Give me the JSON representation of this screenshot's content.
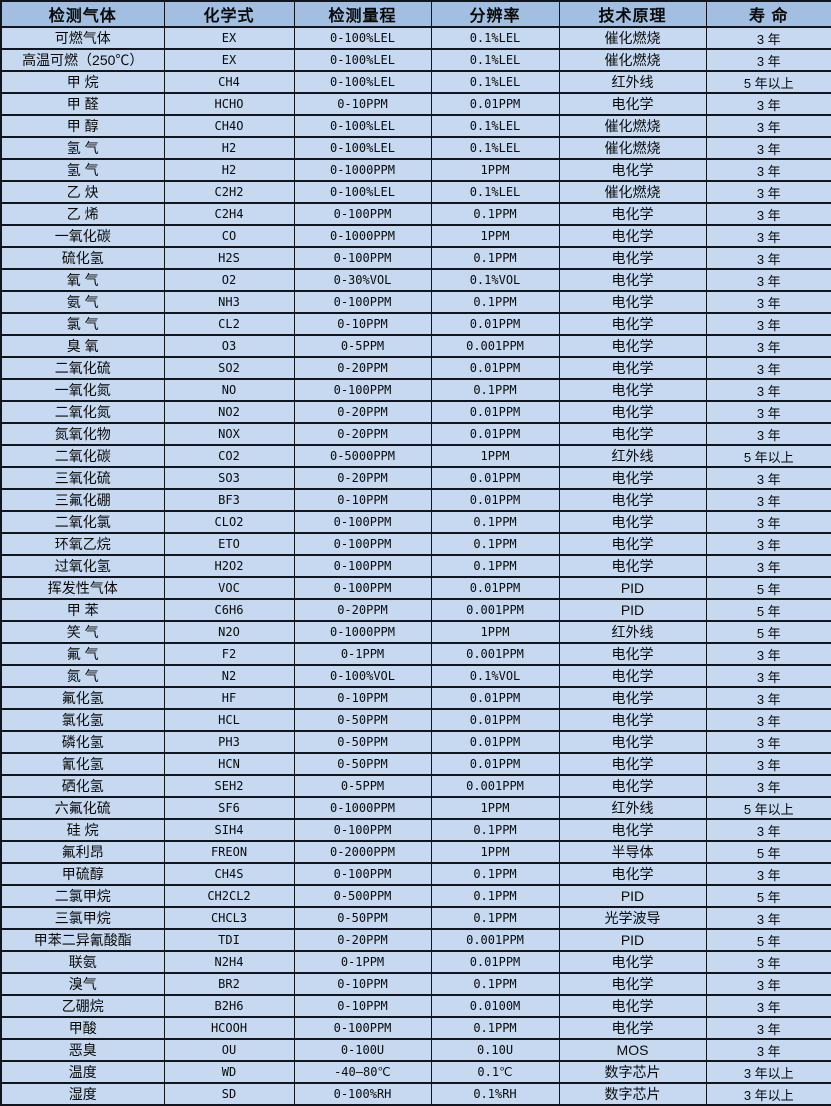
{
  "colors": {
    "header_bg": "#a2bfe1",
    "row_bg": "#c6d9f1",
    "border": "#13151c",
    "text": "#0a0a0a"
  },
  "table": {
    "headers": [
      "检测气体",
      "化学式",
      "检测量程",
      "分辨率",
      "技术原理",
      "寿 命"
    ],
    "column_names": [
      "gas-name",
      "chemical-formula",
      "detection-range",
      "resolution",
      "principle",
      "lifespan"
    ],
    "rows": [
      [
        "可燃气体",
        "EX",
        "0-100%LEL",
        "0.1%LEL",
        "催化燃烧",
        "3 年"
      ],
      [
        "高温可燃（250℃）",
        "EX",
        "0-100%LEL",
        "0.1%LEL",
        "催化燃烧",
        "3 年"
      ],
      [
        "甲 烷",
        "CH4",
        "0-100%LEL",
        "0.1%LEL",
        "红外线",
        "5 年以上"
      ],
      [
        "甲 醛",
        "HCHO",
        "0-10PPM",
        "0.01PPM",
        "电化学",
        "3 年"
      ],
      [
        "甲 醇",
        "CH4O",
        "0-100%LEL",
        "0.1%LEL",
        "催化燃烧",
        "3 年"
      ],
      [
        "氢 气",
        "H2",
        "0-100%LEL",
        "0.1%LEL",
        "催化燃烧",
        "3 年"
      ],
      [
        "氢 气",
        "H2",
        "0-1000PPM",
        "1PPM",
        "电化学",
        "3 年"
      ],
      [
        "乙 炔",
        "C2H2",
        "0-100%LEL",
        "0.1%LEL",
        "催化燃烧",
        "3 年"
      ],
      [
        "乙 烯",
        "C2H4",
        "0-100PPM",
        "0.1PPM",
        "电化学",
        "3 年"
      ],
      [
        "一氧化碳",
        "CO",
        "0-1000PPM",
        "1PPM",
        "电化学",
        "3 年"
      ],
      [
        "硫化氢",
        "H2S",
        "0-100PPM",
        "0.1PPM",
        "电化学",
        "3 年"
      ],
      [
        "氧 气",
        "O2",
        "0-30%VOL",
        "0.1%VOL",
        "电化学",
        "3 年"
      ],
      [
        "氨 气",
        "NH3",
        "0-100PPM",
        "0.1PPM",
        "电化学",
        "3 年"
      ],
      [
        "氯 气",
        "CL2",
        "0-10PPM",
        "0.01PPM",
        "电化学",
        "3 年"
      ],
      [
        "臭 氧",
        "O3",
        "0-5PPM",
        "0.001PPM",
        "电化学",
        "3 年"
      ],
      [
        "二氧化硫",
        "SO2",
        "0-20PPM",
        "0.01PPM",
        "电化学",
        "3 年"
      ],
      [
        "一氧化氮",
        "NO",
        "0-100PPM",
        "0.1PPM",
        "电化学",
        "3 年"
      ],
      [
        "二氧化氮",
        "NO2",
        "0-20PPM",
        "0.01PPM",
        "电化学",
        "3 年"
      ],
      [
        "氮氧化物",
        "NOX",
        "0-20PPM",
        "0.01PPM",
        "电化学",
        "3 年"
      ],
      [
        "二氧化碳",
        "CO2",
        "0-5000PPM",
        "1PPM",
        "红外线",
        "5 年以上"
      ],
      [
        "三氧化硫",
        "SO3",
        "0-20PPM",
        "0.01PPM",
        "电化学",
        "3 年"
      ],
      [
        "三氟化硼",
        "BF3",
        "0-10PPM",
        "0.01PPM",
        "电化学",
        "3 年"
      ],
      [
        "二氧化氯",
        "CLO2",
        "0-100PPM",
        "0.1PPM",
        "电化学",
        "3 年"
      ],
      [
        "环氧乙烷",
        "ETO",
        "0-100PPM",
        "0.1PPM",
        "电化学",
        "3 年"
      ],
      [
        "过氧化氢",
        "H2O2",
        "0-100PPM",
        "0.1PPM",
        "电化学",
        "3 年"
      ],
      [
        "挥发性气体",
        "VOC",
        "0-100PPM",
        "0.01PPM",
        "PID",
        "5 年"
      ],
      [
        "甲 苯",
        "C6H6",
        "0-20PPM",
        "0.001PPM",
        "PID",
        "5 年"
      ],
      [
        "笑 气",
        "N2O",
        "0-1000PPM",
        "1PPM",
        "红外线",
        "5 年"
      ],
      [
        "氟 气",
        "F2",
        "0-1PPM",
        "0.001PPM",
        "电化学",
        "3 年"
      ],
      [
        "氮 气",
        "N2",
        "0-100%VOL",
        "0.1%VOL",
        "电化学",
        "3 年"
      ],
      [
        "氟化氢",
        "HF",
        "0-10PPM",
        "0.01PPM",
        "电化学",
        "3 年"
      ],
      [
        "氯化氢",
        "HCL",
        "0-50PPM",
        "0.01PPM",
        "电化学",
        "3 年"
      ],
      [
        "磷化氢",
        "PH3",
        "0-50PPM",
        "0.01PPM",
        "电化学",
        "3 年"
      ],
      [
        "氰化氢",
        "HCN",
        "0-50PPM",
        "0.01PPM",
        "电化学",
        "3 年"
      ],
      [
        "硒化氢",
        "SEH2",
        "0-5PPM",
        "0.001PPM",
        "电化学",
        "3 年"
      ],
      [
        "六氟化硫",
        "SF6",
        "0-1000PPM",
        "1PPM",
        "红外线",
        "5 年以上"
      ],
      [
        "硅 烷",
        "SIH4",
        "0-100PPM",
        "0.1PPM",
        "电化学",
        "3 年"
      ],
      [
        "氟利昂",
        "FREON",
        "0-2000PPM",
        "1PPM",
        "半导体",
        "5 年"
      ],
      [
        "甲硫醇",
        "CH4S",
        "0-100PPM",
        "0.1PPM",
        "电化学",
        "3 年"
      ],
      [
        "二氯甲烷",
        "CH2CL2",
        "0-500PPM",
        "0.1PPM",
        "PID",
        "5 年"
      ],
      [
        "三氯甲烷",
        "CHCL3",
        "0-50PPM",
        "0.1PPM",
        "光学波导",
        "3 年"
      ],
      [
        "甲苯二异氰酸酯",
        "TDI",
        "0-20PPM",
        "0.001PPM",
        "PID",
        "5 年"
      ],
      [
        "联氨",
        "N2H4",
        "0-1PPM",
        "0.01PPM",
        "电化学",
        "3 年"
      ],
      [
        "溴气",
        "BR2",
        "0-10PPM",
        "0.1PPM",
        "电化学",
        "3 年"
      ],
      [
        "乙硼烷",
        "B2H6",
        "0-10PPM",
        "0.0100M",
        "电化学",
        "3 年"
      ],
      [
        "甲酸",
        "HCOOH",
        "0-100PPM",
        "0.1PPM",
        "电化学",
        "3 年"
      ],
      [
        "恶臭",
        "OU",
        "0-100U",
        "0.10U",
        "MOS",
        "3 年"
      ],
      [
        "温度",
        "WD",
        "-40—80℃",
        "0.1℃",
        "数字芯片",
        "3 年以上"
      ],
      [
        "湿度",
        "SD",
        "0-100%RH",
        "0.1%RH",
        "数字芯片",
        "3 年以上"
      ]
    ]
  }
}
